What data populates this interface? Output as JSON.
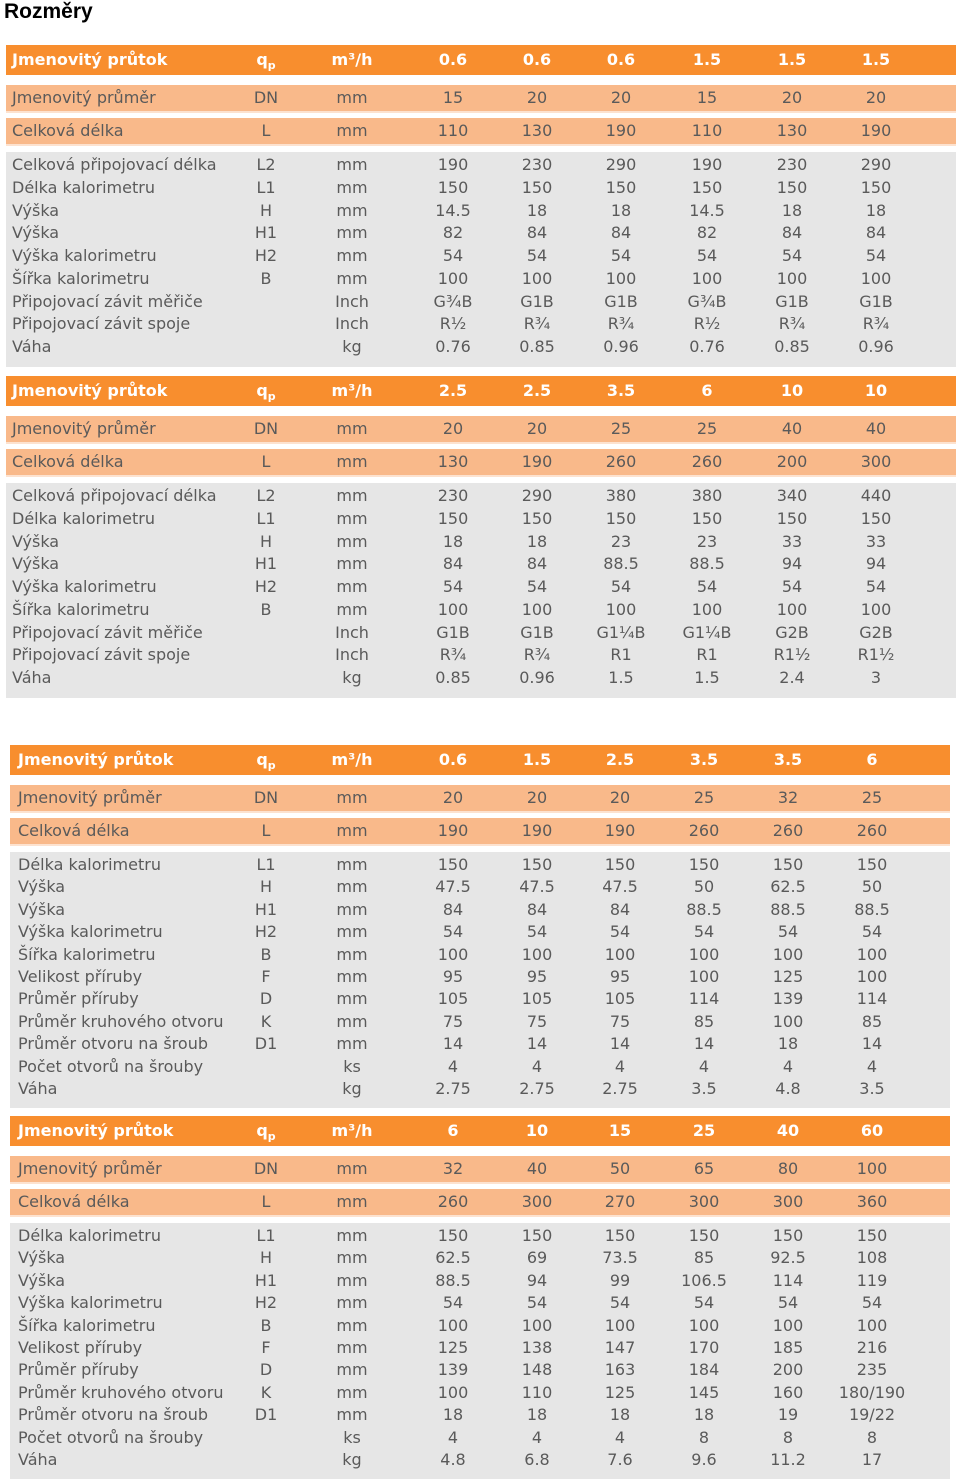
{
  "title": "Rozměry",
  "tables": [
    {
      "header": {
        "label": "Jmenovitý průtok",
        "symbol": "qp",
        "unit": "m³/h",
        "values": [
          "0.6",
          "0.6",
          "0.6",
          "1.5",
          "1.5",
          "1.5"
        ]
      },
      "bands": [
        {
          "label": "Jmenovitý průměr",
          "symbol": "DN",
          "unit": "mm",
          "values": [
            "15",
            "20",
            "20",
            "15",
            "20",
            "20"
          ]
        },
        {
          "label": "Celková délka",
          "symbol": "L",
          "unit": "mm",
          "values": [
            "110",
            "130",
            "190",
            "110",
            "130",
            "190"
          ]
        }
      ],
      "rows": [
        {
          "label": "Celková připojovací délka",
          "symbol": "L2",
          "unit": "mm",
          "values": [
            "190",
            "230",
            "290",
            "190",
            "230",
            "290"
          ]
        },
        {
          "label": "Délka kalorimetru",
          "symbol": "L1",
          "unit": "mm",
          "values": [
            "150",
            "150",
            "150",
            "150",
            "150",
            "150"
          ]
        },
        {
          "label": "Výška",
          "symbol": "H",
          "unit": "mm",
          "values": [
            "14.5",
            "18",
            "18",
            "14.5",
            "18",
            "18"
          ]
        },
        {
          "label": "Výška",
          "symbol": "H1",
          "unit": "mm",
          "values": [
            "82",
            "84",
            "84",
            "82",
            "84",
            "84"
          ]
        },
        {
          "label": "Výška kalorimetru",
          "symbol": "H2",
          "unit": "mm",
          "values": [
            "54",
            "54",
            "54",
            "54",
            "54",
            "54"
          ]
        },
        {
          "label": "Šířka kalorimetru",
          "symbol": "B",
          "unit": "mm",
          "values": [
            "100",
            "100",
            "100",
            "100",
            "100",
            "100"
          ]
        },
        {
          "label": "Připojovací závit měřiče",
          "symbol": "",
          "unit": "Inch",
          "values": [
            "G¾B",
            "G1B",
            "G1B",
            "G¾B",
            "G1B",
            "G1B"
          ]
        },
        {
          "label": "Připojovací závit spoje",
          "symbol": "",
          "unit": "Inch",
          "values": [
            "R½",
            "R¾",
            "R¾",
            "R½",
            "R¾",
            "R¾"
          ]
        },
        {
          "label": "Váha",
          "symbol": "",
          "unit": "kg",
          "values": [
            "0.76",
            "0.85",
            "0.96",
            "0.76",
            "0.85",
            "0.96"
          ]
        }
      ]
    },
    {
      "header": {
        "label": "Jmenovitý průtok",
        "symbol": "qp",
        "unit": "m³/h",
        "values": [
          "2.5",
          "2.5",
          "3.5",
          "6",
          "10",
          "10"
        ]
      },
      "bands": [
        {
          "label": "Jmenovitý průměr",
          "symbol": "DN",
          "unit": "mm",
          "values": [
            "20",
            "20",
            "25",
            "25",
            "40",
            "40"
          ]
        },
        {
          "label": "Celková délka",
          "symbol": "L",
          "unit": "mm",
          "values": [
            "130",
            "190",
            "260",
            "260",
            "200",
            "300"
          ]
        }
      ],
      "rows": [
        {
          "label": "Celková připojovací délka",
          "symbol": "L2",
          "unit": "mm",
          "values": [
            "230",
            "290",
            "380",
            "380",
            "340",
            "440"
          ]
        },
        {
          "label": "Délka kalorimetru",
          "symbol": "L1",
          "unit": "mm",
          "values": [
            "150",
            "150",
            "150",
            "150",
            "150",
            "150"
          ]
        },
        {
          "label": "Výška",
          "symbol": "H",
          "unit": "mm",
          "values": [
            "18",
            "18",
            "23",
            "23",
            "33",
            "33"
          ]
        },
        {
          "label": "Výška",
          "symbol": "H1",
          "unit": "mm",
          "values": [
            "84",
            "84",
            "88.5",
            "88.5",
            "94",
            "94"
          ]
        },
        {
          "label": "Výška kalorimetru",
          "symbol": "H2",
          "unit": "mm",
          "values": [
            "54",
            "54",
            "54",
            "54",
            "54",
            "54"
          ]
        },
        {
          "label": "Šířka kalorimetru",
          "symbol": "B",
          "unit": "mm",
          "values": [
            "100",
            "100",
            "100",
            "100",
            "100",
            "100"
          ]
        },
        {
          "label": "Připojovací závit měřiče",
          "symbol": "",
          "unit": "Inch",
          "values": [
            "G1B",
            "G1B",
            "G1¼B",
            "G1¼B",
            "G2B",
            "G2B"
          ]
        },
        {
          "label": "Připojovací závit spoje",
          "symbol": "",
          "unit": "Inch",
          "values": [
            "R¾",
            "R¾",
            "R1",
            "R1",
            "R1½",
            "R1½"
          ]
        },
        {
          "label": "Váha",
          "symbol": "",
          "unit": "kg",
          "values": [
            "0.85",
            "0.96",
            "1.5",
            "1.5",
            "2.4",
            "3"
          ]
        }
      ]
    },
    {
      "header": {
        "label": "Jmenovitý průtok",
        "symbol": "qp",
        "unit": "m³/h",
        "values": [
          "0.6",
          "1.5",
          "2.5",
          "3.5",
          "3.5",
          "6"
        ]
      },
      "bands": [
        {
          "label": "Jmenovitý průměr",
          "symbol": "DN",
          "unit": "mm",
          "values": [
            "20",
            "20",
            "20",
            "25",
            "32",
            "25"
          ]
        },
        {
          "label": "Celková délka",
          "symbol": "L",
          "unit": "mm",
          "values": [
            "190",
            "190",
            "190",
            "260",
            "260",
            "260"
          ]
        }
      ],
      "rows": [
        {
          "label": "Délka kalorimetru",
          "symbol": "L1",
          "unit": "mm",
          "values": [
            "150",
            "150",
            "150",
            "150",
            "150",
            "150"
          ]
        },
        {
          "label": "Výška",
          "symbol": "H",
          "unit": "mm",
          "values": [
            "47.5",
            "47.5",
            "47.5",
            "50",
            "62.5",
            "50"
          ]
        },
        {
          "label": "Výška",
          "symbol": "H1",
          "unit": "mm",
          "values": [
            "84",
            "84",
            "84",
            "88.5",
            "88.5",
            "88.5"
          ]
        },
        {
          "label": "Výška kalorimetru",
          "symbol": "H2",
          "unit": "mm",
          "values": [
            "54",
            "54",
            "54",
            "54",
            "54",
            "54"
          ]
        },
        {
          "label": "Šířka kalorimetru",
          "symbol": "B",
          "unit": "mm",
          "values": [
            "100",
            "100",
            "100",
            "100",
            "100",
            "100"
          ]
        },
        {
          "label": "Velikost příruby",
          "symbol": "F",
          "unit": "mm",
          "values": [
            "95",
            "95",
            "95",
            "100",
            "125",
            "100"
          ]
        },
        {
          "label": "Průměr příruby",
          "symbol": "D",
          "unit": "mm",
          "values": [
            "105",
            "105",
            "105",
            "114",
            "139",
            "114"
          ]
        },
        {
          "label": "Průměr kruhového otvoru",
          "symbol": "K",
          "unit": "mm",
          "values": [
            "75",
            "75",
            "75",
            "85",
            "100",
            "85"
          ]
        },
        {
          "label": "Průměr otvoru na šroub",
          "symbol": "D1",
          "unit": "mm",
          "values": [
            "14",
            "14",
            "14",
            "14",
            "18",
            "14"
          ]
        },
        {
          "label": "Počet otvorů na šrouby",
          "symbol": "",
          "unit": "ks",
          "values": [
            "4",
            "4",
            "4",
            "4",
            "4",
            "4"
          ]
        },
        {
          "label": "Váha",
          "symbol": "",
          "unit": "kg",
          "values": [
            "2.75",
            "2.75",
            "2.75",
            "3.5",
            "4.8",
            "3.5"
          ]
        }
      ]
    },
    {
      "header": {
        "label": "Jmenovitý průtok",
        "symbol": "qp",
        "unit": "m³/h",
        "values": [
          "6",
          "10",
          "15",
          "25",
          "40",
          "60"
        ]
      },
      "bands": [
        {
          "label": "Jmenovitý průměr",
          "symbol": "DN",
          "unit": "mm",
          "values": [
            "32",
            "40",
            "50",
            "65",
            "80",
            "100"
          ]
        },
        {
          "label": "Celková délka",
          "symbol": "L",
          "unit": "mm",
          "values": [
            "260",
            "300",
            "270",
            "300",
            "300",
            "360"
          ]
        }
      ],
      "rows": [
        {
          "label": "Délka kalorimetru",
          "symbol": "L1",
          "unit": "mm",
          "values": [
            "150",
            "150",
            "150",
            "150",
            "150",
            "150"
          ]
        },
        {
          "label": "Výška",
          "symbol": "H",
          "unit": "mm",
          "values": [
            "62.5",
            "69",
            "73.5",
            "85",
            "92.5",
            "108"
          ]
        },
        {
          "label": "Výška",
          "symbol": "H1",
          "unit": "mm",
          "values": [
            "88.5",
            "94",
            "99",
            "106.5",
            "114",
            "119"
          ]
        },
        {
          "label": "Výška kalorimetru",
          "symbol": "H2",
          "unit": "mm",
          "values": [
            "54",
            "54",
            "54",
            "54",
            "54",
            "54"
          ]
        },
        {
          "label": "Šířka kalorimetru",
          "symbol": "B",
          "unit": "mm",
          "values": [
            "100",
            "100",
            "100",
            "100",
            "100",
            "100"
          ]
        },
        {
          "label": "Velikost příruby",
          "symbol": "F",
          "unit": "mm",
          "values": [
            "125",
            "138",
            "147",
            "170",
            "185",
            "216"
          ]
        },
        {
          "label": "Průměr příruby",
          "symbol": "D",
          "unit": "mm",
          "values": [
            "139",
            "148",
            "163",
            "184",
            "200",
            "235"
          ]
        },
        {
          "label": "Průměr kruhového otvoru",
          "symbol": "K",
          "unit": "mm",
          "values": [
            "100",
            "110",
            "125",
            "145",
            "160",
            "180/190"
          ]
        },
        {
          "label": "Průměr otvoru na šroub",
          "symbol": "D1",
          "unit": "mm",
          "values": [
            "18",
            "18",
            "18",
            "18",
            "19",
            "19/22"
          ]
        },
        {
          "label": "Počet otvorů na šrouby",
          "symbol": "",
          "unit": "ks",
          "values": [
            "4",
            "4",
            "4",
            "8",
            "8",
            "8"
          ]
        },
        {
          "label": "Váha",
          "symbol": "",
          "unit": "kg",
          "values": [
            "4.8",
            "6.8",
            "7.6",
            "9.6",
            "11.2",
            "17"
          ]
        }
      ]
    }
  ]
}
